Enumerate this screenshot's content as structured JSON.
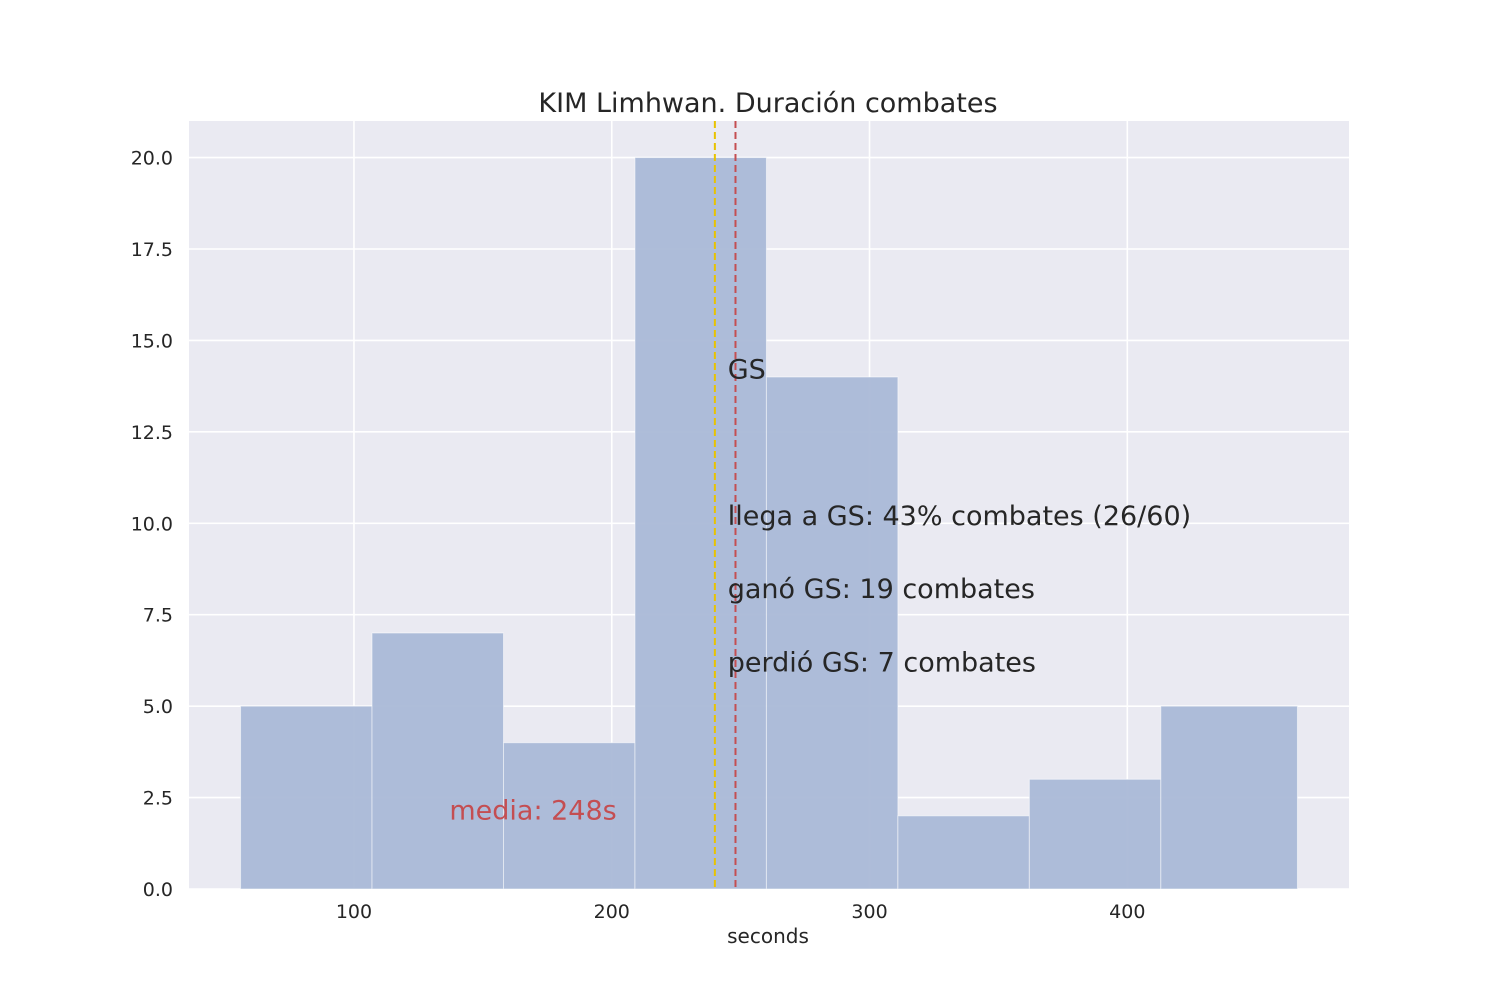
{
  "chart_data": {
    "type": "bar",
    "title": "KIM Limhwan. Duración combates",
    "xlabel": "seconds",
    "ylabel": "",
    "xlim": [
      36,
      486
    ],
    "ylim": [
      0,
      21
    ],
    "xticks": [
      100,
      200,
      300,
      400
    ],
    "yticks": [
      0,
      2.5,
      5,
      7.5,
      10,
      12.5,
      15,
      17.5,
      20
    ],
    "ytick_labels": [
      "0.0",
      "2.5",
      "5.0",
      "7.5",
      "10.0",
      "12.5",
      "15.0",
      "17.5",
      "20.0"
    ],
    "grid": true,
    "background": "#eaeaf2",
    "bar_color": "#aab9d7",
    "bins": [
      {
        "x0": 56,
        "x1": 107,
        "count": 5
      },
      {
        "x0": 107,
        "x1": 158,
        "count": 7
      },
      {
        "x0": 158,
        "x1": 209,
        "count": 4
      },
      {
        "x0": 209,
        "x1": 260,
        "count": 20
      },
      {
        "x0": 260,
        "x1": 311,
        "count": 14
      },
      {
        "x0": 311,
        "x1": 362,
        "count": 2
      },
      {
        "x0": 362,
        "x1": 413,
        "count": 3
      },
      {
        "x0": 413,
        "x1": 466,
        "count": 5
      }
    ],
    "vlines": [
      {
        "x": 240,
        "color": "#e8c300"
      },
      {
        "x": 248,
        "color": "#c44e52"
      }
    ],
    "annotations": [
      {
        "text": "GS",
        "x": 245,
        "y": 14.2,
        "color": "#262626"
      },
      {
        "text": "llega a GS: 43% combates (26/60)",
        "x": 245,
        "y": 10.2,
        "color": "#262626"
      },
      {
        "text": "ganó GS: 19 combates",
        "x": 245,
        "y": 8.2,
        "color": "#262626"
      },
      {
        "text": "perdió GS: 7 combates",
        "x": 245,
        "y": 6.2,
        "color": "#262626"
      },
      {
        "text": "media: 248s",
        "x": 137,
        "y": 2.15,
        "color": "#c44e52"
      }
    ]
  }
}
